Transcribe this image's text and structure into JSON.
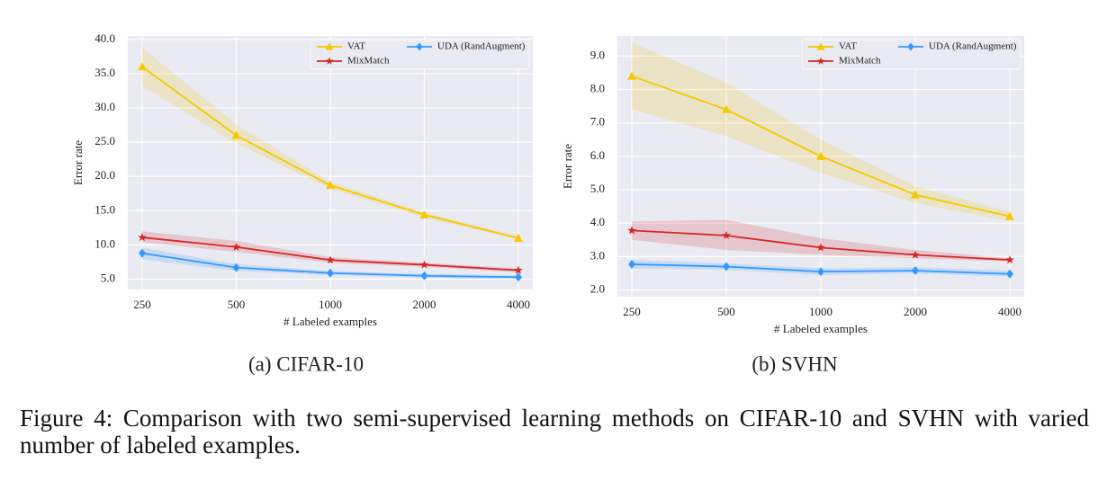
{
  "chart_data": [
    {
      "type": "line",
      "subcaption": "(a) CIFAR-10",
      "x_label": "# Labeled examples",
      "y_label": "Error rate",
      "categories": [
        "250",
        "500",
        "1000",
        "2000",
        "4000"
      ],
      "ylim": [
        3.5,
        40.5
      ],
      "yticks": [
        {
          "value": 5,
          "label": "5.0"
        },
        {
          "value": 10,
          "label": "10.0"
        },
        {
          "value": 15,
          "label": "15.0"
        },
        {
          "value": 20,
          "label": "20.0"
        },
        {
          "value": 25,
          "label": "25.0"
        },
        {
          "value": 30,
          "label": "30.0"
        },
        {
          "value": 35,
          "label": "35.0"
        },
        {
          "value": 40,
          "label": "40.0"
        }
      ],
      "grid": true,
      "legend": "upper right",
      "series": [
        {
          "name": "VAT",
          "color": "#f5c800",
          "marker": "triangle",
          "values": [
            36.0,
            26.0,
            18.7,
            14.4,
            11.0
          ],
          "lower": [
            33.2,
            24.8,
            18.2,
            14.0,
            10.8
          ],
          "upper": [
            38.8,
            27.6,
            19.2,
            14.8,
            11.3
          ]
        },
        {
          "name": "MixMatch",
          "color": "#d62728",
          "marker": "star",
          "values": [
            11.1,
            9.7,
            7.8,
            7.1,
            6.3
          ],
          "lower": [
            10.4,
            9.0,
            7.4,
            6.8,
            6.0
          ],
          "upper": [
            12.0,
            10.6,
            8.2,
            7.4,
            6.6
          ]
        },
        {
          "name": "UDA (RandAugment)",
          "color": "#3399ff",
          "marker": "diamond",
          "values": [
            8.8,
            6.7,
            5.9,
            5.5,
            5.3
          ],
          "lower": [
            7.9,
            6.2,
            5.6,
            5.2,
            5.0
          ],
          "upper": [
            9.6,
            7.2,
            6.2,
            5.8,
            5.6
          ]
        }
      ]
    },
    {
      "type": "line",
      "subcaption": "(b) SVHN",
      "x_label": "# Labeled examples",
      "y_label": "Error rate",
      "categories": [
        "250",
        "500",
        "1000",
        "2000",
        "4000"
      ],
      "ylim": [
        1.8,
        9.6
      ],
      "yticks": [
        {
          "value": 2,
          "label": "2.0"
        },
        {
          "value": 3,
          "label": "3.0"
        },
        {
          "value": 4,
          "label": "4.0"
        },
        {
          "value": 5,
          "label": "5.0"
        },
        {
          "value": 6,
          "label": "6.0"
        },
        {
          "value": 7,
          "label": "7.0"
        },
        {
          "value": 8,
          "label": "8.0"
        },
        {
          "value": 9,
          "label": "9.0"
        }
      ],
      "grid": true,
      "legend": "upper right",
      "series": [
        {
          "name": "VAT",
          "color": "#f5c800",
          "marker": "triangle",
          "values": [
            8.4,
            7.4,
            6.0,
            4.85,
            4.2
          ],
          "lower": [
            7.4,
            6.6,
            5.5,
            4.6,
            4.05
          ],
          "upper": [
            9.4,
            8.2,
            6.5,
            5.1,
            4.35
          ]
        },
        {
          "name": "MixMatch",
          "color": "#d62728",
          "marker": "star",
          "values": [
            3.78,
            3.63,
            3.27,
            3.05,
            2.9
          ],
          "lower": [
            3.5,
            3.2,
            3.05,
            2.95,
            2.85
          ],
          "upper": [
            4.05,
            4.1,
            3.55,
            3.2,
            2.95
          ]
        },
        {
          "name": "UDA (RandAugment)",
          "color": "#3399ff",
          "marker": "diamond",
          "values": [
            2.77,
            2.7,
            2.55,
            2.58,
            2.48
          ],
          "lower": [
            2.65,
            2.6,
            2.45,
            2.5,
            2.4
          ],
          "upper": [
            2.9,
            2.8,
            2.65,
            2.68,
            2.58
          ]
        }
      ]
    }
  ],
  "caption": "Figure 4: Comparison with two semi-supervised learning methods on CIFAR-10 and SVHN with varied number of labeled examples."
}
